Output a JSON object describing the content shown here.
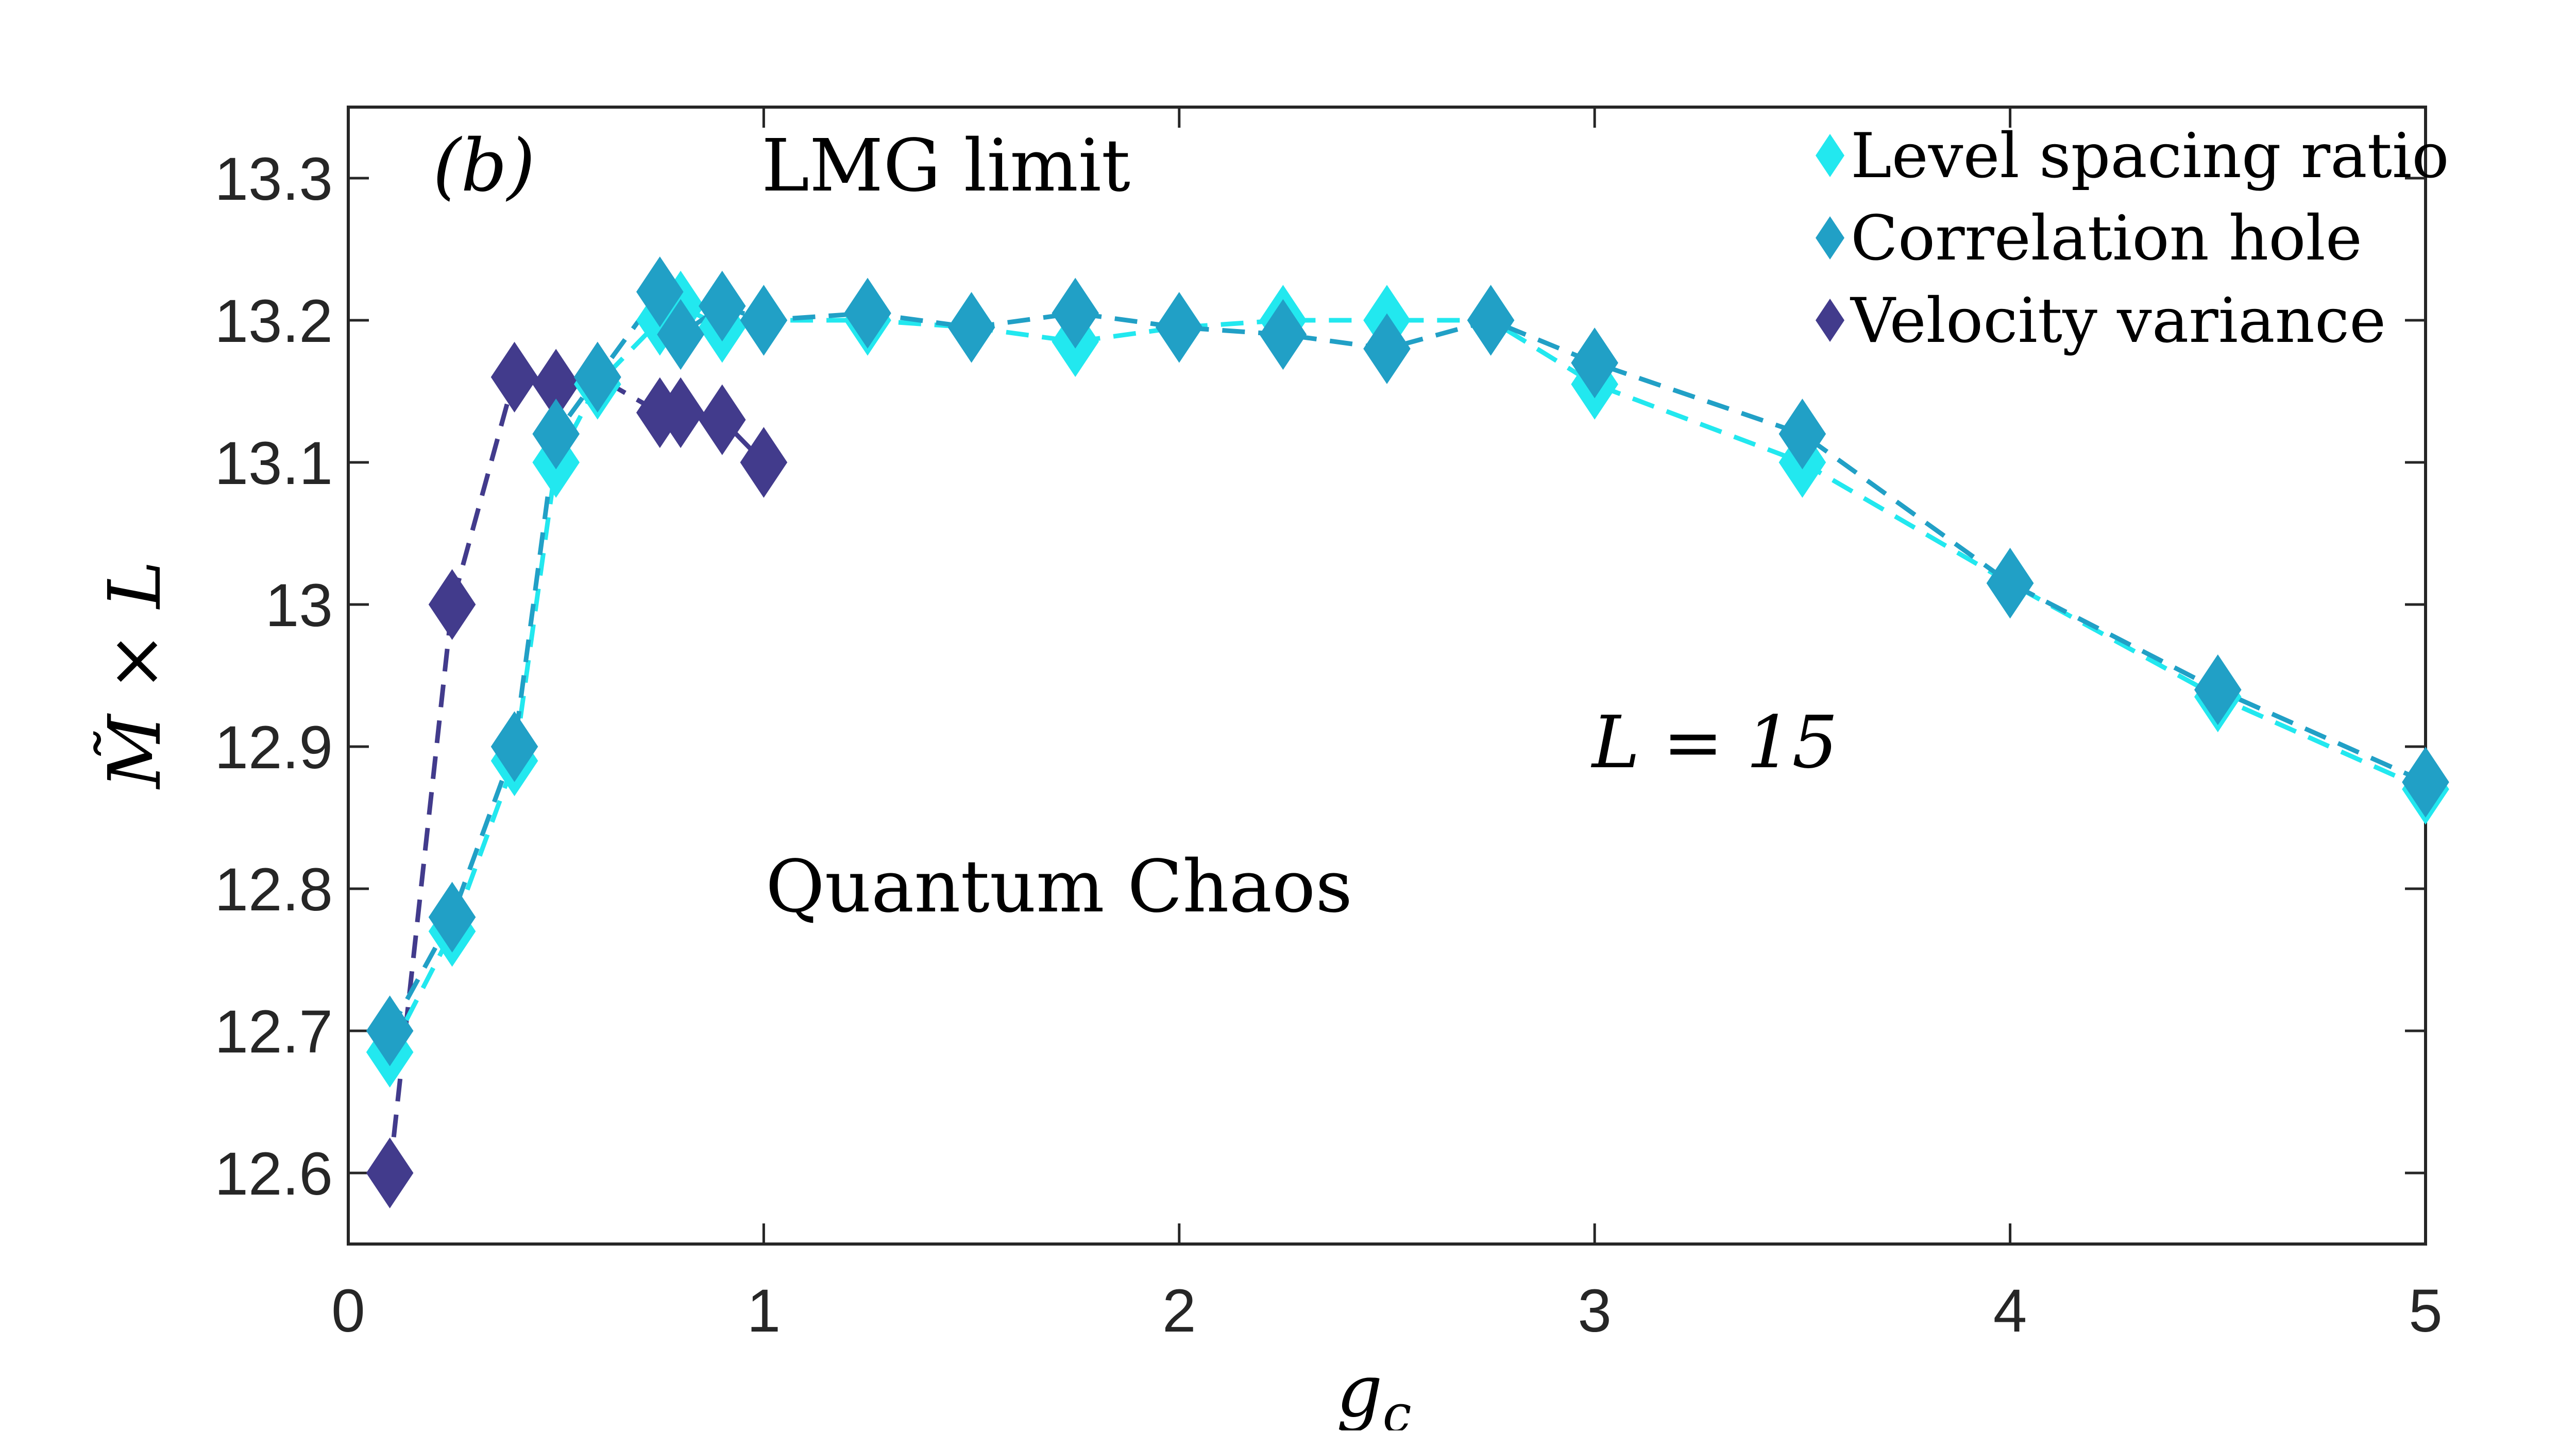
{
  "chart_data": {
    "type": "scatter",
    "panel_label": "(b)",
    "xlabel": "g_c",
    "xlabel_main": "g",
    "xlabel_sub": "c",
    "ylabel": "M̃ × L",
    "ylabel_main": "M̃ × L",
    "xlim": [
      0,
      5
    ],
    "ylim": [
      12.55,
      13.35
    ],
    "xticks": [
      0,
      1,
      2,
      3,
      4,
      5
    ],
    "xtick_labels": [
      "0",
      "1",
      "2",
      "3",
      "4",
      "5"
    ],
    "yticks": [
      12.6,
      12.7,
      12.8,
      12.9,
      13.0,
      13.1,
      13.2,
      13.3
    ],
    "ytick_labels": [
      "12.6",
      "12.7",
      "12.8",
      "12.9",
      "13",
      "13.1",
      "13.2",
      "13.3"
    ],
    "grid": false,
    "legend_position": "top-right",
    "annotations": {
      "lmg": "LMG limit",
      "chaos": "Quantum Chaos",
      "size": "L = 15"
    },
    "series": [
      {
        "name": "Level spacing ratio",
        "color": "#22e8ef",
        "x": [
          0.1,
          0.25,
          0.4,
          0.5,
          0.6,
          0.75,
          0.8,
          0.9,
          1.0,
          1.25,
          1.5,
          1.75,
          2.0,
          2.25,
          2.5,
          2.75,
          3.0,
          3.5,
          4.0,
          4.5,
          5.0
        ],
        "y": [
          12.685,
          12.77,
          12.89,
          13.1,
          13.155,
          13.2,
          13.21,
          13.195,
          13.2,
          13.2,
          13.195,
          13.185,
          13.195,
          13.2,
          13.2,
          13.2,
          13.155,
          13.1,
          13.015,
          12.935,
          12.87
        ]
      },
      {
        "name": "Correlation hole",
        "color": "#21a0c6",
        "x": [
          0.1,
          0.25,
          0.4,
          0.5,
          0.6,
          0.75,
          0.8,
          0.9,
          1.0,
          1.25,
          1.5,
          1.75,
          2.0,
          2.25,
          2.5,
          2.75,
          3.0,
          3.5,
          4.0,
          4.5,
          5.0
        ],
        "y": [
          12.7,
          12.78,
          12.9,
          13.12,
          13.16,
          13.22,
          13.19,
          13.21,
          13.2,
          13.205,
          13.195,
          13.205,
          13.195,
          13.19,
          13.18,
          13.2,
          13.17,
          13.12,
          13.015,
          12.94,
          12.875
        ]
      },
      {
        "name": "Velocity variance",
        "color": "#423b8c",
        "x": [
          0.1,
          0.25,
          0.4,
          0.5,
          0.6,
          0.75,
          0.8,
          0.9,
          1.0
        ],
        "y": [
          12.6,
          13.0,
          13.16,
          13.155,
          13.16,
          13.135,
          13.135,
          13.13,
          13.1
        ]
      }
    ]
  }
}
